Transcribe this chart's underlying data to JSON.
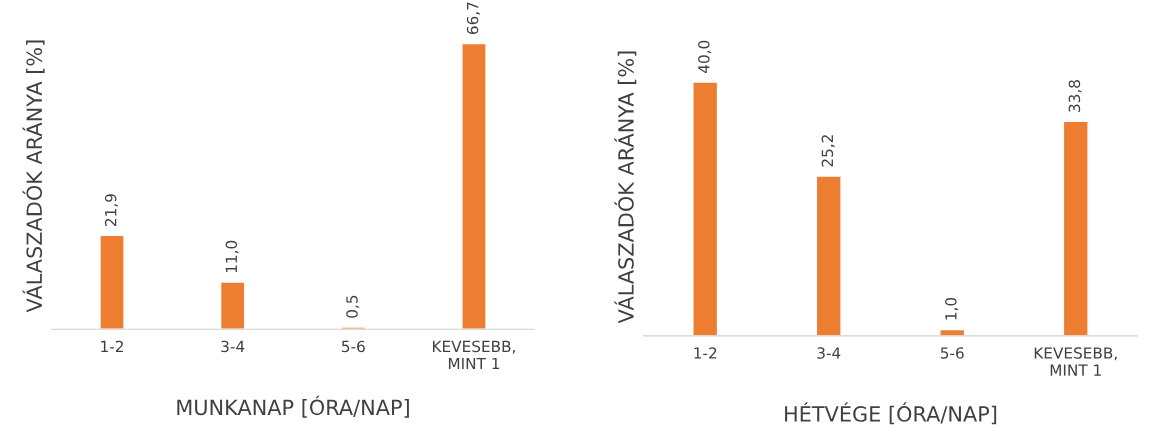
{
  "chart_data": [
    {
      "type": "bar",
      "xlabel": "MUNKANAP [ÓRA/NAP]",
      "ylabel": "VÁLASZADÓK ARÁNYA [%]",
      "categories": [
        "1-2",
        "3-4",
        "5-6",
        "KEVESEBB,\nMINT 1"
      ],
      "values": [
        21.9,
        11.0,
        0.5,
        66.7
      ],
      "value_labels": [
        "21,9",
        "11,0",
        "0,5",
        "66,7"
      ],
      "color": "#ed7d31",
      "tick_labels": "x"
    },
    {
      "type": "bar",
      "xlabel": "HÉTVÉGE [ÓRA/NAP]",
      "ylabel": "VÁLASZADÓK ARÁNYA [%]",
      "categories": [
        "1-2",
        "3-4",
        "5-6",
        "KEVESEBB,\nMINT 1"
      ],
      "values": [
        40.0,
        25.2,
        1.0,
        33.8
      ],
      "value_labels": [
        "40,0",
        "25,2",
        "1,0",
        "33,8"
      ],
      "color": "#ed7d31",
      "tick_labels": "x"
    }
  ]
}
